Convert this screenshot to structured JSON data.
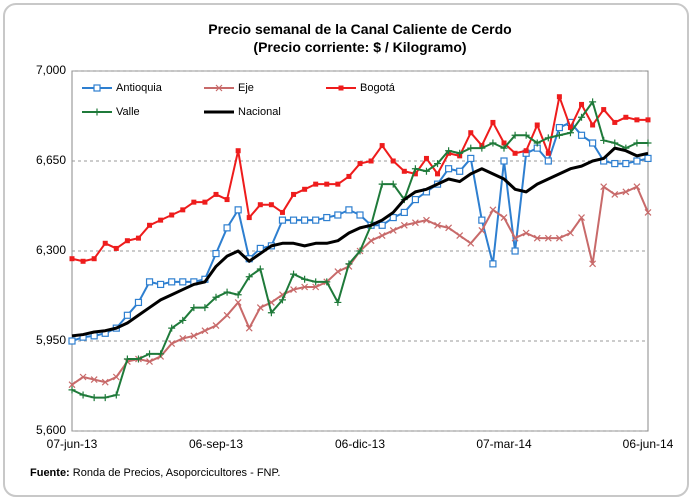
{
  "chart_data": {
    "type": "line",
    "title": "Precio semanal de la Canal Caliente de Cerdo",
    "subtitle": "(Precio corriente: $ / Kilogramo)",
    "source_label": "Fuente:",
    "source_text": "Ronda de Precios, Asoporcicultores - FNP.",
    "categories": [
      "07-jun-13",
      null,
      null,
      null,
      null,
      null,
      null,
      null,
      null,
      null,
      null,
      null,
      null,
      "06-sep-13",
      null,
      null,
      null,
      null,
      null,
      null,
      null,
      null,
      null,
      null,
      null,
      null,
      "06-dic-13",
      null,
      null,
      null,
      null,
      null,
      null,
      null,
      null,
      null,
      null,
      null,
      null,
      "07-mar-14",
      null,
      null,
      null,
      null,
      null,
      null,
      null,
      null,
      null,
      null,
      null,
      null,
      "06-jun-14"
    ],
    "ylim": [
      5600,
      7000
    ],
    "yticks": [
      {
        "value": 5600,
        "label": "5,600"
      },
      {
        "value": 5950,
        "label": "5,950"
      },
      {
        "value": 6300,
        "label": "6,300"
      },
      {
        "value": 6650,
        "label": "6,650"
      },
      {
        "value": 7000,
        "label": "7,000"
      }
    ],
    "grid": true,
    "legend_position": "upper left",
    "series": [
      {
        "name": "Antioquia",
        "color": "#2e7fd0",
        "marker": "square",
        "values": [
          5950,
          5965,
          5970,
          5980,
          6000,
          6050,
          6100,
          6180,
          6170,
          6180,
          6180,
          6180,
          6190,
          6290,
          6390,
          6460,
          6270,
          6310,
          6320,
          6420,
          6420,
          6420,
          6420,
          6430,
          6440,
          6460,
          6440,
          6400,
          6400,
          6430,
          6450,
          6500,
          6530,
          6560,
          6620,
          6610,
          6660,
          6420,
          6250,
          6650,
          6300,
          6680,
          6700,
          6650,
          6780,
          6800,
          6750,
          6720,
          6650,
          6640,
          6640,
          6650,
          6660
        ]
      },
      {
        "name": "Eje",
        "color": "#c86a6a",
        "marker": "x",
        "values": [
          5780,
          5810,
          5800,
          5790,
          5810,
          5870,
          5880,
          5870,
          5890,
          5940,
          5960,
          5970,
          5990,
          6010,
          6050,
          6100,
          6000,
          6080,
          6100,
          6130,
          6150,
          6160,
          6160,
          6180,
          6220,
          6240,
          6300,
          6340,
          6360,
          6380,
          6400,
          6410,
          6420,
          6400,
          6390,
          6360,
          6330,
          6380,
          6460,
          6430,
          6350,
          6370,
          6350,
          6350,
          6350,
          6370,
          6430,
          6250,
          6550,
          6520,
          6530,
          6550,
          6450
        ]
      },
      {
        "name": "Bogotá",
        "color": "#ee1c1c",
        "marker": "dot",
        "values": [
          6270,
          6260,
          6270,
          6330,
          6310,
          6340,
          6350,
          6400,
          6420,
          6440,
          6460,
          6490,
          6490,
          6520,
          6500,
          6690,
          6430,
          6480,
          6480,
          6450,
          6520,
          6540,
          6560,
          6560,
          6560,
          6590,
          6640,
          6650,
          6710,
          6650,
          6610,
          6600,
          6660,
          6600,
          6680,
          6670,
          6760,
          6710,
          6800,
          6720,
          6680,
          6690,
          6790,
          6680,
          6900,
          6780,
          6870,
          6790,
          6850,
          6800,
          6820,
          6810,
          6810
        ]
      },
      {
        "name": "Valle",
        "color": "#1f7a3a",
        "marker": "plus",
        "values": [
          5760,
          5740,
          5730,
          5730,
          5740,
          5880,
          5880,
          5900,
          5900,
          6000,
          6030,
          6080,
          6080,
          6120,
          6140,
          6130,
          6200,
          6230,
          6060,
          6110,
          6210,
          6190,
          6180,
          6180,
          6100,
          6250,
          6300,
          6400,
          6560,
          6560,
          6500,
          6620,
          6610,
          6640,
          6690,
          6680,
          6700,
          6700,
          6720,
          6700,
          6750,
          6750,
          6720,
          6740,
          6750,
          6760,
          6820,
          6880,
          6730,
          6720,
          6700,
          6720,
          6720
        ]
      },
      {
        "name": "Nacional",
        "color": "#000000",
        "marker": "none",
        "values": [
          5970,
          5975,
          5985,
          5990,
          6000,
          6020,
          6050,
          6080,
          6110,
          6130,
          6150,
          6170,
          6180,
          6240,
          6280,
          6300,
          6260,
          6290,
          6320,
          6330,
          6330,
          6320,
          6330,
          6330,
          6340,
          6370,
          6390,
          6400,
          6420,
          6450,
          6500,
          6530,
          6540,
          6560,
          6580,
          6570,
          6600,
          6620,
          6600,
          6580,
          6540,
          6530,
          6560,
          6580,
          6600,
          6620,
          6630,
          6650,
          6660,
          6700,
          6690,
          6670,
          6680
        ]
      }
    ]
  }
}
